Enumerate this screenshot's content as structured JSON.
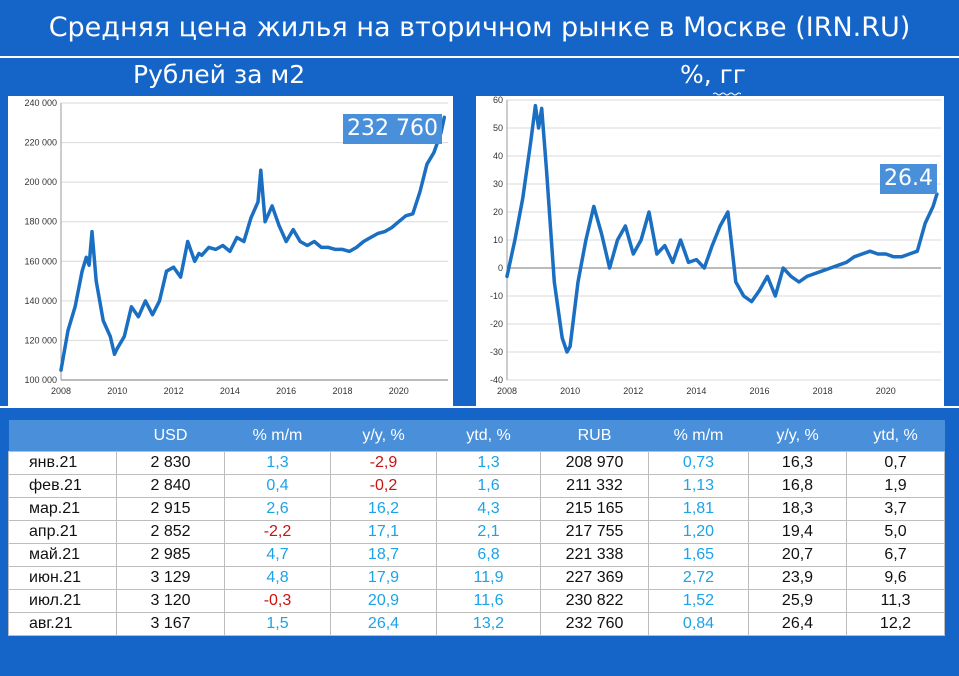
{
  "title": "Средняя цена жилья на вторичном рынке в Москве (IRN.RU)",
  "colors": {
    "background": "#1565c8",
    "line": "#1a6fc2",
    "badge": "#4a8fd9",
    "positive": "#1aa3e8",
    "negative": "#cc1111"
  },
  "chart_data": [
    {
      "type": "line",
      "title": "Рублей за м2",
      "xlabel": "",
      "ylabel": "",
      "xlim": [
        2008,
        2021.75
      ],
      "ylim": [
        100000,
        240000
      ],
      "grid": true,
      "x_ticks": [
        "2008",
        "2010",
        "2012",
        "2014",
        "2016",
        "2018",
        "2020"
      ],
      "y_ticks": [
        "100 000",
        "120 000",
        "140 000",
        "160 000",
        "180 000",
        "200 000",
        "220 000",
        "240 000"
      ],
      "annotation": "232 760",
      "series": [
        {
          "x": [
            2008.0,
            2008.25,
            2008.5,
            2008.75,
            2008.9,
            2009.0,
            2009.1,
            2009.25,
            2009.5,
            2009.75,
            2009.9,
            2010.0,
            2010.25,
            2010.5,
            2010.75,
            2011.0,
            2011.25,
            2011.5,
            2011.75,
            2012.0,
            2012.25,
            2012.5,
            2012.75,
            2012.9,
            2013.0,
            2013.25,
            2013.5,
            2013.75,
            2014.0,
            2014.25,
            2014.5,
            2014.75,
            2015.0,
            2015.1,
            2015.25,
            2015.5,
            2015.75,
            2016.0,
            2016.25,
            2016.5,
            2016.75,
            2017.0,
            2017.25,
            2017.5,
            2017.75,
            2018.0,
            2018.25,
            2018.5,
            2018.75,
            2019.0,
            2019.25,
            2019.5,
            2019.75,
            2020.0,
            2020.25,
            2020.5,
            2020.75,
            2021.0,
            2021.25,
            2021.5,
            2021.62
          ],
          "values": [
            105000,
            125000,
            137000,
            155000,
            162000,
            158000,
            175000,
            150000,
            130000,
            122000,
            113000,
            116000,
            122000,
            137000,
            132000,
            140000,
            133000,
            140000,
            155000,
            157000,
            152000,
            170000,
            160000,
            164000,
            163000,
            167000,
            166000,
            168000,
            165000,
            172000,
            170000,
            182000,
            190000,
            206000,
            180000,
            188000,
            178000,
            170000,
            176000,
            170000,
            168000,
            170000,
            167000,
            167000,
            166000,
            166000,
            165000,
            167000,
            170000,
            172000,
            174000,
            175000,
            177000,
            180000,
            183000,
            184000,
            195000,
            209000,
            215000,
            225000,
            232760
          ]
        }
      ]
    },
    {
      "type": "line",
      "title": "%, гг",
      "xlabel": "",
      "ylabel": "",
      "xlim": [
        2008,
        2021.75
      ],
      "ylim": [
        -40,
        60
      ],
      "grid": true,
      "x_ticks": [
        "2008",
        "2010",
        "2012",
        "2014",
        "2016",
        "2018",
        "2020"
      ],
      "y_ticks": [
        "-40",
        "-30",
        "-20",
        "-10",
        "0",
        "10",
        "20",
        "30",
        "40",
        "50",
        "60"
      ],
      "annotation": "26.4",
      "series": [
        {
          "x": [
            2008.0,
            2008.25,
            2008.5,
            2008.75,
            2008.9,
            2009.0,
            2009.1,
            2009.25,
            2009.5,
            2009.75,
            2009.9,
            2010.0,
            2010.25,
            2010.5,
            2010.75,
            2011.0,
            2011.25,
            2011.5,
            2011.75,
            2012.0,
            2012.25,
            2012.5,
            2012.75,
            2013.0,
            2013.25,
            2013.5,
            2013.75,
            2014.0,
            2014.25,
            2014.5,
            2014.75,
            2015.0,
            2015.1,
            2015.25,
            2015.5,
            2015.75,
            2016.0,
            2016.25,
            2016.5,
            2016.75,
            2017.0,
            2017.25,
            2017.5,
            2017.75,
            2018.0,
            2018.25,
            2018.5,
            2018.75,
            2019.0,
            2019.25,
            2019.5,
            2019.75,
            2020.0,
            2020.25,
            2020.5,
            2020.75,
            2021.0,
            2021.25,
            2021.5,
            2021.62
          ],
          "values": [
            -3,
            10,
            25,
            45,
            58,
            50,
            57,
            35,
            -5,
            -25,
            -30,
            -28,
            -5,
            10,
            22,
            12,
            0,
            10,
            15,
            5,
            10,
            20,
            5,
            8,
            2,
            10,
            2,
            3,
            0,
            8,
            15,
            20,
            10,
            -5,
            -10,
            -12,
            -8,
            -3,
            -10,
            0,
            -3,
            -5,
            -3,
            -2,
            -1,
            0,
            1,
            2,
            4,
            5,
            6,
            5,
            5,
            4,
            4,
            5,
            6,
            16,
            22,
            26.4
          ]
        }
      ]
    }
  ],
  "table": {
    "headers": [
      "",
      "USD",
      "% m/m",
      "y/y, %",
      "ytd, %",
      "RUB",
      "% m/m",
      "y/y, %",
      "ytd, %"
    ],
    "rows": [
      [
        "янв.21",
        "2 830",
        "1,3",
        "-2,9",
        "1,3",
        "208 970",
        "0,73",
        "16,3",
        "0,7"
      ],
      [
        "фев.21",
        "2 840",
        "0,4",
        "-0,2",
        "1,6",
        "211 332",
        "1,13",
        "16,8",
        "1,9"
      ],
      [
        "мар.21",
        "2 915",
        "2,6",
        "16,2",
        "4,3",
        "215 165",
        "1,81",
        "18,3",
        "3,7"
      ],
      [
        "апр.21",
        "2 852",
        "-2,2",
        "17,1",
        "2,1",
        "217 755",
        "1,20",
        "19,4",
        "5,0"
      ],
      [
        "май.21",
        "2 985",
        "4,7",
        "18,7",
        "6,8",
        "221 338",
        "1,65",
        "20,7",
        "6,7"
      ],
      [
        "июн.21",
        "3 129",
        "4,8",
        "17,9",
        "11,9",
        "227 369",
        "2,72",
        "23,9",
        "9,6"
      ],
      [
        "июл.21",
        "3 120",
        "-0,3",
        "20,9",
        "11,6",
        "230 822",
        "1,52",
        "25,9",
        "11,3"
      ],
      [
        "авг.21",
        "3 167",
        "1,5",
        "26,4",
        "13,2",
        "232 760",
        "0,84",
        "26,4",
        "12,2"
      ]
    ]
  }
}
